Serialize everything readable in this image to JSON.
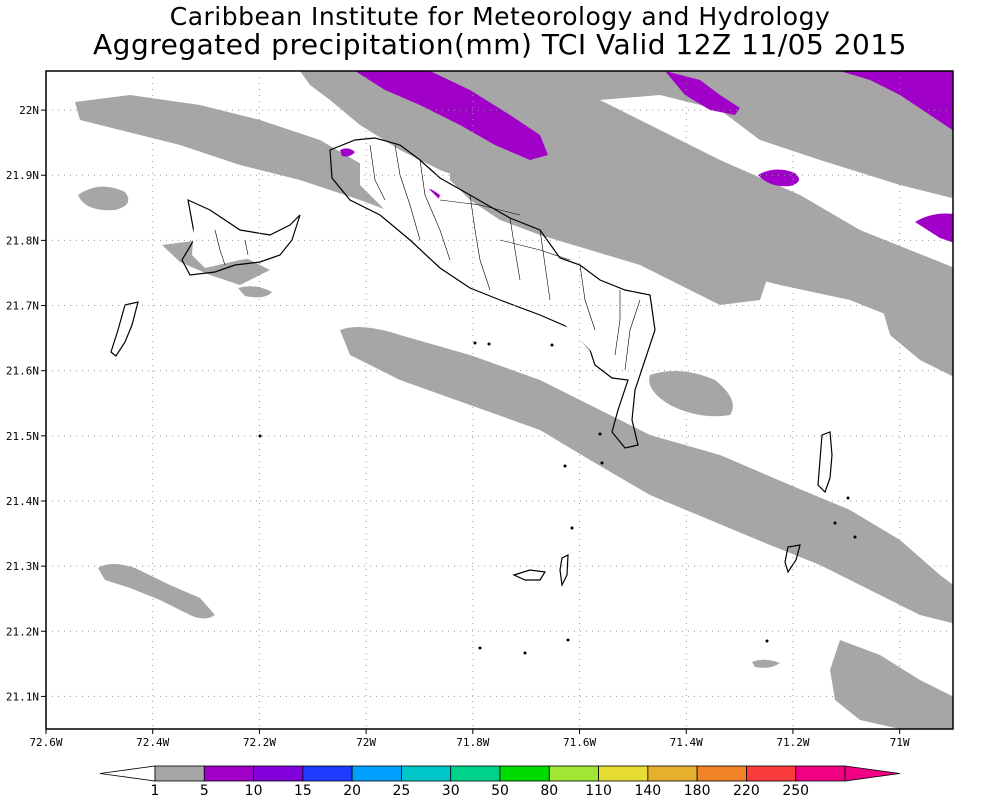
{
  "header": {
    "title_line1": "Caribbean Institute for Meteorology and Hydrology",
    "title_line2": "Aggregated precipitation(mm) TCI Valid 12Z 11/05 2015"
  },
  "map": {
    "region": "Turks and Caicos Islands",
    "lon_ticks": [
      "72.6W",
      "72.4W",
      "72.2W",
      "72W",
      "71.8W",
      "71.6W",
      "71.4W",
      "71.2W",
      "71W"
    ],
    "lat_ticks": [
      "22N",
      "21.9N",
      "21.8N",
      "21.7N",
      "21.6N",
      "21.5N",
      "21.4N",
      "21.3N",
      "21.2N",
      "21.1N"
    ],
    "lon_range": [
      -72.6,
      -70.9
    ],
    "lat_range": [
      21.05,
      22.06
    ],
    "grid": "dotted",
    "colors": {
      "precip_1_5": "#a6a6a6",
      "precip_10": "#a000c8",
      "coastline": "#000000"
    }
  },
  "colorbar": {
    "labels": [
      "1",
      "5",
      "10",
      "15",
      "20",
      "25",
      "30",
      "50",
      "80",
      "110",
      "140",
      "180",
      "220",
      "250"
    ],
    "colors": [
      "#a6a6a6",
      "#a000c8",
      "#8200dc",
      "#1e3cff",
      "#00a0ff",
      "#00c8c8",
      "#00d28c",
      "#00dc00",
      "#a0e632",
      "#e6dc32",
      "#e6af2d",
      "#f08228",
      "#fa3c3c",
      "#f00082"
    ],
    "low_end_color": "#ffffff",
    "high_end_color": "#f00082"
  }
}
